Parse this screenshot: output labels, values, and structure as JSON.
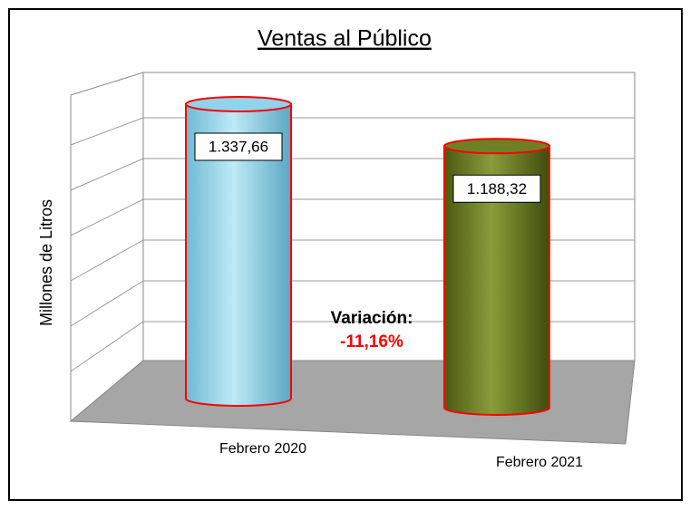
{
  "chart_data": {
    "type": "cylinder",
    "title": "Ventas al Público",
    "y_label": "Millones de Litros",
    "categories": [
      "Febrero 2020",
      "Febrero 2021"
    ],
    "values": [
      1337.66,
      1188.32
    ],
    "value_labels": [
      "1.337,66",
      "1.188,32"
    ],
    "colors": [
      "#8fd4ea",
      "#6e7f25"
    ],
    "annotations": [
      "Variación:",
      "-11,16%"
    ]
  }
}
